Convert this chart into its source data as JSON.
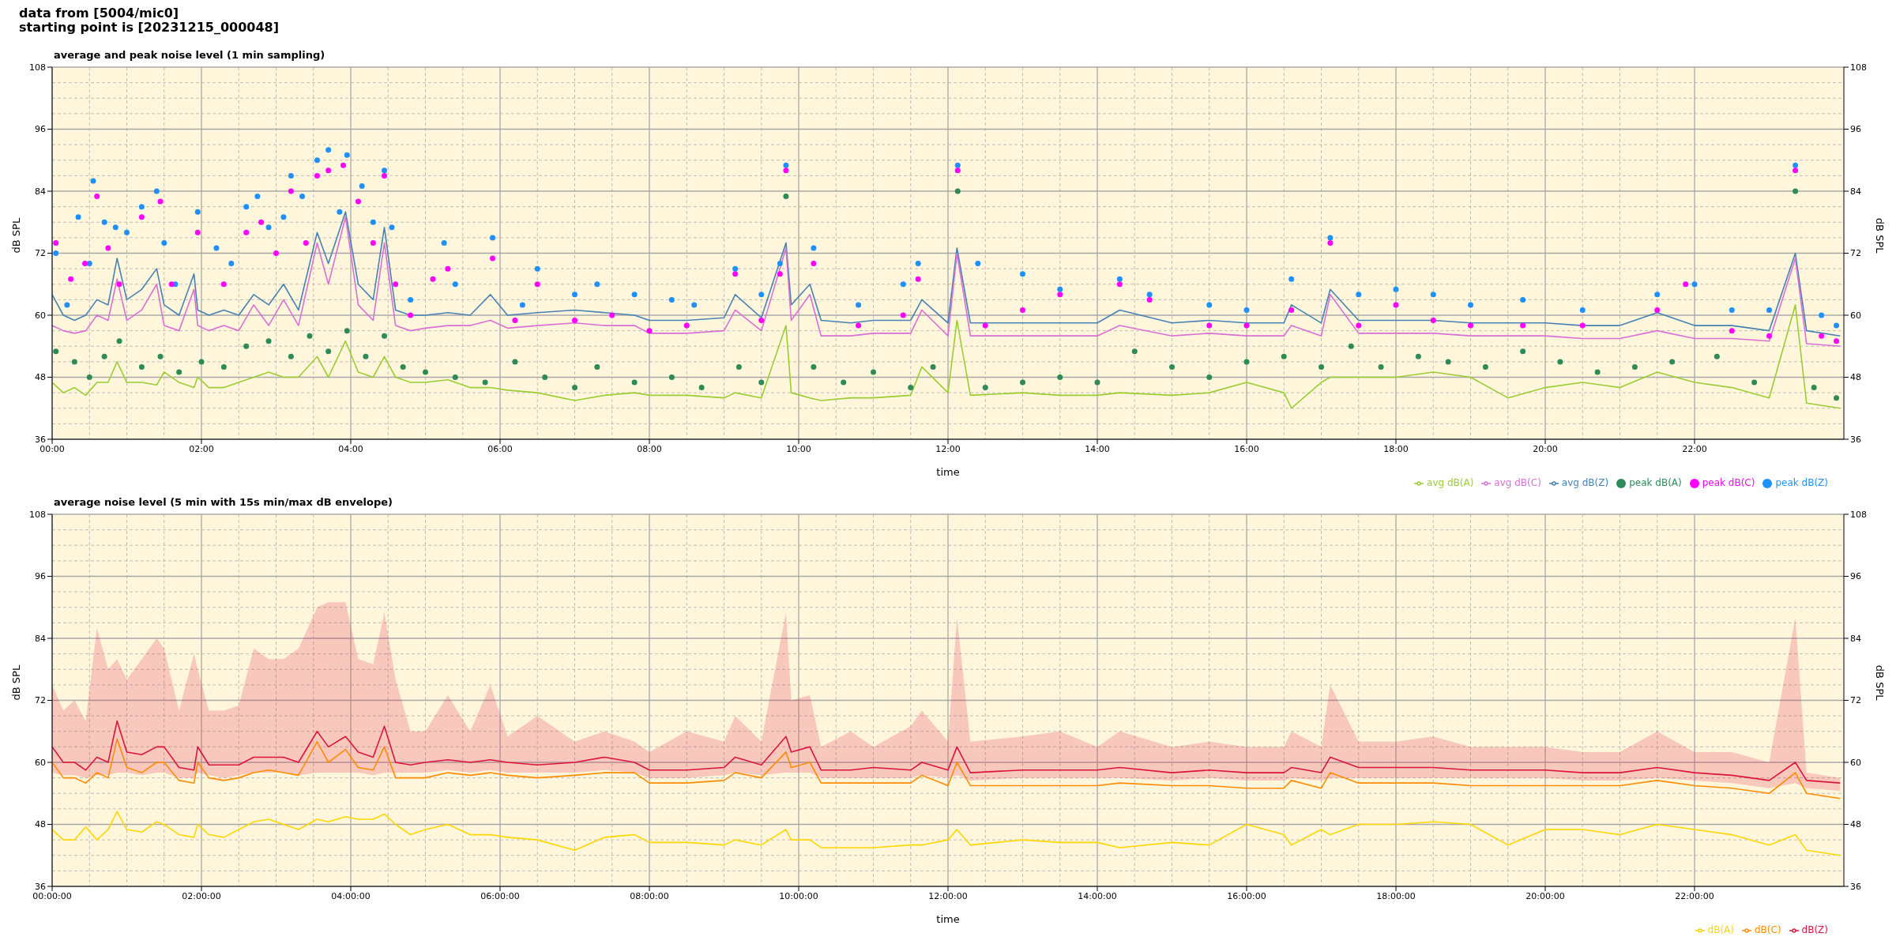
{
  "chart_data": [
    {
      "type": "line",
      "title": "average and peak noise level (1 min sampling)",
      "annotations": [
        "data from [5004/mic0]",
        "starting point is [20231215_000048]"
      ],
      "xlabel": "time",
      "ylabel": "dB SPL",
      "y2label": "dB SPL",
      "x": [
        0,
        0.15,
        0.3,
        0.45,
        0.6,
        0.75,
        0.87,
        1.0,
        1.2,
        1.4,
        1.5,
        1.7,
        1.9,
        1.95,
        2.1,
        2.3,
        2.5,
        2.7,
        2.9,
        3.1,
        3.3,
        3.55,
        3.7,
        3.93,
        4.1,
        4.3,
        4.45,
        4.6,
        4.8,
        5.0,
        5.3,
        5.6,
        5.87,
        6.1,
        6.5,
        7.0,
        7.4,
        7.8,
        8.0,
        8.5,
        9.0,
        9.15,
        9.5,
        9.83,
        9.9,
        10.15,
        10.3,
        10.7,
        11.0,
        11.5,
        11.65,
        12.0,
        12.12,
        12.3,
        13.0,
        13.5,
        14.0,
        14.3,
        15.0,
        15.5,
        16.0,
        16.5,
        16.6,
        17.0,
        17.12,
        17.5,
        18.0,
        18.5,
        19.0,
        19.5,
        20.0,
        20.5,
        21.0,
        21.5,
        22.0,
        22.5,
        23.0,
        23.35,
        23.5,
        23.95
      ],
      "xlim": [
        0,
        24
      ],
      "xticks": [
        {
          "value": 0,
          "label": "00:00"
        },
        {
          "value": 2,
          "label": "02:00"
        },
        {
          "value": 4,
          "label": "04:00"
        },
        {
          "value": 6,
          "label": "06:00"
        },
        {
          "value": 8,
          "label": "08:00"
        },
        {
          "value": 10,
          "label": "10:00"
        },
        {
          "value": 12,
          "label": "12:00"
        },
        {
          "value": 14,
          "label": "14:00"
        },
        {
          "value": 16,
          "label": "16:00"
        },
        {
          "value": 18,
          "label": "18:00"
        },
        {
          "value": 20,
          "label": "20:00"
        },
        {
          "value": 22,
          "label": "22:00"
        }
      ],
      "ylim": [
        36,
        108
      ],
      "yticks": [
        36,
        48,
        60,
        72,
        84,
        96,
        108
      ],
      "y2lim": [
        36,
        108
      ],
      "y2ticks": [
        36,
        48,
        60,
        72,
        84,
        96,
        108
      ],
      "grid": true,
      "legend": "bottom right",
      "series": [
        {
          "name": "peak dB(Z)",
          "type": "scatter",
          "marker": "circle",
          "color": "#1e90ff",
          "x": [
            0.05,
            0.2,
            0.35,
            0.5,
            0.55,
            0.7,
            0.85,
            1.0,
            1.2,
            1.4,
            1.5,
            1.65,
            1.95,
            2.2,
            2.4,
            2.6,
            2.75,
            2.9,
            3.1,
            3.2,
            3.35,
            3.55,
            3.7,
            3.85,
            3.95,
            4.15,
            4.3,
            4.45,
            4.55,
            4.8,
            5.25,
            5.4,
            5.9,
            6.3,
            6.5,
            7.0,
            7.3,
            7.8,
            8.3,
            8.6,
            9.15,
            9.5,
            9.75,
            9.83,
            10.2,
            10.8,
            11.4,
            11.6,
            12.13,
            12.4,
            13.0,
            13.5,
            14.3,
            14.7,
            15.5,
            16.0,
            16.6,
            17.12,
            17.5,
            18.0,
            18.5,
            19.0,
            19.7,
            20.5,
            21.5,
            22.0,
            22.5,
            23.0,
            23.35,
            23.7,
            23.9
          ],
          "values": [
            72,
            62,
            79,
            70,
            86,
            78,
            77,
            76,
            81,
            84,
            74,
            66,
            80,
            73,
            70,
            81,
            83,
            77,
            79,
            87,
            83,
            90,
            92,
            80,
            91,
            85,
            78,
            88,
            77,
            63,
            74,
            66,
            75,
            62,
            69,
            64,
            66,
            64,
            63,
            62,
            69,
            64,
            70,
            89,
            73,
            62,
            66,
            70,
            89,
            70,
            68,
            65,
            67,
            64,
            62,
            61,
            67,
            75,
            64,
            65,
            64,
            62,
            63,
            61,
            64,
            66,
            61,
            61,
            89,
            60,
            58
          ]
        },
        {
          "name": "peak dB(C)",
          "type": "scatter",
          "marker": "circle",
          "color": "#ff00ff",
          "x": [
            0.05,
            0.25,
            0.44,
            0.6,
            0.75,
            0.9,
            1.2,
            1.45,
            1.6,
            1.95,
            2.3,
            2.6,
            2.8,
            3.0,
            3.2,
            3.4,
            3.55,
            3.7,
            3.9,
            4.1,
            4.3,
            4.45,
            4.6,
            4.8,
            5.1,
            5.3,
            5.9,
            6.2,
            6.5,
            7.0,
            7.5,
            8.0,
            8.5,
            9.15,
            9.5,
            9.75,
            9.83,
            10.2,
            10.8,
            11.4,
            11.6,
            12.13,
            12.5,
            13.0,
            13.5,
            14.3,
            14.7,
            15.5,
            16.0,
            16.6,
            17.12,
            17.5,
            18.0,
            18.5,
            19.0,
            19.7,
            20.5,
            21.5,
            21.88,
            22.5,
            23.0,
            23.35,
            23.7,
            23.9
          ],
          "values": [
            74,
            67,
            70,
            83,
            73,
            66,
            79,
            82,
            66,
            76,
            66,
            76,
            78,
            72,
            84,
            74,
            87,
            88,
            89,
            82,
            74,
            87,
            66,
            60,
            67,
            69,
            71,
            59,
            66,
            59,
            60,
            57,
            58,
            68,
            59,
            68,
            88,
            70,
            58,
            60,
            67,
            88,
            58,
            61,
            64,
            66,
            63,
            58,
            58,
            61,
            74,
            58,
            62,
            59,
            58,
            58,
            58,
            61,
            66,
            57,
            56,
            88,
            56,
            55
          ]
        },
        {
          "name": "peak dB(A)",
          "type": "scatter",
          "marker": "circle",
          "color": "#2e8b57",
          "x": [
            0.05,
            0.3,
            0.5,
            0.7,
            0.9,
            1.2,
            1.45,
            1.7,
            2.0,
            2.3,
            2.6,
            2.9,
            3.2,
            3.45,
            3.7,
            3.95,
            4.2,
            4.45,
            4.7,
            5.0,
            5.4,
            5.8,
            6.2,
            6.6,
            7.0,
            7.3,
            7.8,
            8.3,
            8.7,
            9.2,
            9.5,
            9.83,
            10.2,
            10.6,
            11.0,
            11.5,
            11.8,
            12.13,
            12.5,
            13.0,
            13.5,
            14.0,
            14.5,
            15.0,
            15.5,
            16.0,
            16.5,
            17.0,
            17.4,
            17.8,
            18.3,
            18.7,
            19.2,
            19.7,
            20.2,
            20.7,
            21.2,
            21.7,
            22.3,
            22.8,
            23.35,
            23.6,
            23.9
          ],
          "values": [
            53,
            51,
            48,
            52,
            55,
            50,
            52,
            49,
            51,
            50,
            54,
            55,
            52,
            56,
            53,
            57,
            52,
            56,
            50,
            49,
            48,
            47,
            51,
            48,
            46,
            50,
            47,
            48,
            46,
            50,
            47,
            83,
            50,
            47,
            49,
            46,
            50,
            84,
            46,
            47,
            48,
            47,
            53,
            50,
            48,
            51,
            52,
            50,
            54,
            50,
            52,
            51,
            50,
            53,
            51,
            49,
            50,
            51,
            52,
            47,
            84,
            46,
            44
          ]
        },
        {
          "name": "avg dB(Z)",
          "color": "#4682b4",
          "values": [
            64,
            60,
            59,
            60,
            63,
            62,
            71,
            63,
            65,
            69,
            62,
            60,
            68,
            61,
            60,
            61,
            60,
            64,
            62,
            66,
            61,
            76,
            70,
            80,
            66,
            63,
            77,
            61,
            60,
            60,
            60.5,
            60,
            64,
            60,
            60.5,
            61,
            60.5,
            60,
            59,
            59,
            59.5,
            64,
            59.5,
            74,
            62,
            66,
            59,
            58.5,
            59,
            59,
            63,
            58.5,
            73,
            58.5,
            58.5,
            58.5,
            58.5,
            61,
            58.5,
            59,
            58.5,
            58.5,
            62,
            58.5,
            65,
            59,
            59,
            59,
            58.5,
            58.5,
            58.5,
            58,
            58,
            60.5,
            58,
            58,
            57,
            72,
            57,
            56
          ]
        },
        {
          "name": "avg dB(C)",
          "color": "#da70d6",
          "values": [
            58,
            57,
            56.5,
            57,
            60,
            59,
            67,
            59,
            61,
            66,
            58,
            57,
            65,
            58,
            57,
            58,
            57,
            62,
            58,
            63,
            58,
            74,
            66,
            79,
            62,
            59,
            74,
            58,
            57,
            57.5,
            58,
            58,
            59,
            57.5,
            58,
            58.5,
            58,
            58,
            56.5,
            56.5,
            57,
            61,
            57,
            73,
            59,
            64,
            56,
            56,
            56.5,
            56.5,
            61,
            56,
            72,
            56,
            56,
            56,
            56,
            58,
            56,
            56.5,
            56,
            56,
            58,
            56,
            64,
            56.5,
            56.5,
            56.5,
            56,
            56,
            56,
            55.5,
            55.5,
            57,
            55.5,
            55.5,
            55,
            71,
            54.5,
            54
          ]
        },
        {
          "name": "avg dB(A)",
          "color": "#9acd32",
          "values": [
            47,
            45,
            46,
            44.5,
            47,
            47,
            51,
            47,
            47,
            46.5,
            49,
            47,
            46,
            48,
            46,
            46,
            47,
            48,
            49,
            48,
            48,
            52,
            48,
            55,
            49,
            48,
            52,
            48,
            47,
            47,
            47.5,
            46,
            46,
            45.5,
            45,
            43.5,
            44.5,
            45,
            44.5,
            44.5,
            44,
            45,
            44,
            58,
            45,
            44,
            43.5,
            44,
            44,
            44.5,
            50,
            45,
            59,
            44.5,
            45,
            44.5,
            44.5,
            45,
            44.5,
            45,
            47,
            45,
            42,
            47,
            48,
            48,
            48,
            49,
            48,
            44,
            46,
            47,
            46,
            49,
            47,
            46,
            44,
            62,
            43,
            42
          ]
        }
      ]
    },
    {
      "type": "line",
      "title": "average noise level (5 min with 15s min/max dB envelope)",
      "xlabel": "time",
      "ylabel": "dB SPL",
      "y2label": "dB SPL",
      "x": [
        0,
        0.15,
        0.3,
        0.45,
        0.6,
        0.75,
        0.87,
        1.0,
        1.2,
        1.4,
        1.5,
        1.7,
        1.9,
        1.95,
        2.1,
        2.3,
        2.5,
        2.7,
        2.9,
        3.1,
        3.3,
        3.55,
        3.7,
        3.93,
        4.1,
        4.3,
        4.45,
        4.6,
        4.8,
        5.0,
        5.3,
        5.6,
        5.87,
        6.1,
        6.5,
        7.0,
        7.4,
        7.8,
        8.0,
        8.5,
        9.0,
        9.15,
        9.5,
        9.83,
        9.9,
        10.15,
        10.3,
        10.7,
        11.0,
        11.5,
        11.65,
        12.0,
        12.12,
        12.3,
        13.0,
        13.5,
        14.0,
        14.3,
        15.0,
        15.5,
        16.0,
        16.5,
        16.6,
        17.0,
        17.12,
        17.5,
        18.0,
        18.5,
        19.0,
        19.5,
        20.0,
        20.5,
        21.0,
        21.5,
        22.0,
        22.5,
        23.0,
        23.35,
        23.5,
        23.95
      ],
      "xlim": [
        0,
        24
      ],
      "xticks": [
        {
          "value": 0,
          "label": "00:00:00"
        },
        {
          "value": 2,
          "label": "02:00:00"
        },
        {
          "value": 4,
          "label": "04:00:00"
        },
        {
          "value": 6,
          "label": "06:00:00"
        },
        {
          "value": 8,
          "label": "08:00:00"
        },
        {
          "value": 10,
          "label": "10:00:00"
        },
        {
          "value": 12,
          "label": "12:00:00"
        },
        {
          "value": 14,
          "label": "14:00:00"
        },
        {
          "value": 16,
          "label": "16:00:00"
        },
        {
          "value": 18,
          "label": "18:00:00"
        },
        {
          "value": 20,
          "label": "20:00:00"
        },
        {
          "value": 22,
          "label": "22:00:00"
        }
      ],
      "ylim": [
        36,
        108
      ],
      "yticks": [
        36,
        48,
        60,
        72,
        84,
        96,
        108
      ],
      "y2lim": [
        36,
        108
      ],
      "y2ticks": [
        36,
        48,
        60,
        72,
        84,
        96,
        108
      ],
      "grid": true,
      "legend": "bottom right",
      "series": [
        {
          "name": "dB(Z)",
          "color": "#dc143c",
          "values": [
            63,
            60,
            60,
            58.5,
            61,
            60,
            68,
            62,
            61.5,
            63,
            63,
            59,
            58.5,
            63,
            59.5,
            59.5,
            59.5,
            61,
            61,
            61,
            60,
            66,
            63,
            65,
            62,
            61,
            67,
            60,
            59.5,
            60,
            60.5,
            60,
            60.5,
            60,
            59.5,
            60,
            61,
            60,
            58.5,
            58.5,
            59,
            61,
            59.5,
            65,
            62,
            63,
            58.5,
            58.5,
            59,
            58.5,
            60,
            58.5,
            63,
            58,
            58.5,
            58.5,
            58.5,
            59,
            58,
            58.5,
            58,
            58,
            59,
            58,
            61,
            59,
            59,
            59,
            58.5,
            58.5,
            58.5,
            58,
            58,
            59,
            58,
            57.5,
            56.5,
            60,
            56.5,
            56
          ],
          "lower": [
            58,
            57.5,
            57.5,
            57,
            57.5,
            57.5,
            58,
            58,
            57.5,
            58,
            58,
            57,
            57,
            58,
            57.5,
            57,
            57.5,
            58,
            58,
            58,
            57.5,
            58,
            58,
            58,
            58,
            57.5,
            58,
            58,
            58,
            58,
            58.5,
            58,
            58.5,
            58,
            58,
            58,
            58.5,
            58,
            57,
            57,
            57.5,
            58,
            57.5,
            58,
            58,
            58,
            57,
            57,
            57,
            57,
            57.5,
            57,
            57.5,
            56.5,
            57,
            57,
            57,
            57,
            56.5,
            57,
            56.5,
            56.5,
            57,
            56.5,
            57,
            57,
            57,
            57,
            57,
            57,
            57,
            56.5,
            56.5,
            57,
            56.5,
            56,
            55,
            56,
            55,
            54.5
          ],
          "upper": [
            75,
            70,
            72,
            68,
            86,
            78,
            80,
            76,
            80,
            84,
            82,
            70,
            81,
            78,
            70,
            70,
            71,
            82,
            80,
            80,
            82,
            90,
            91,
            91,
            80,
            79,
            89,
            76,
            66,
            66,
            73,
            66,
            75,
            65,
            69,
            64,
            66,
            64,
            62,
            66,
            64,
            69,
            64,
            89,
            72,
            73,
            63,
            66,
            63,
            67,
            70,
            64,
            88,
            64,
            65,
            66,
            63,
            66,
            63,
            64,
            63,
            63,
            66,
            63,
            75,
            64,
            64,
            65,
            63,
            63,
            63,
            62,
            62,
            66,
            62,
            62,
            60,
            88,
            58,
            57
          ]
        },
        {
          "name": "dB(C)",
          "color": "#ff8c00",
          "values": [
            60,
            57,
            57,
            56,
            58,
            57,
            64.5,
            59,
            58,
            60,
            60,
            56.5,
            56,
            60,
            57,
            56.5,
            57,
            58,
            58.5,
            58,
            57.5,
            64,
            60,
            62.5,
            59,
            58.5,
            63,
            57,
            57,
            57,
            58,
            57.5,
            58,
            57.5,
            57,
            57.5,
            58,
            58,
            56,
            56,
            56.5,
            58,
            57,
            62,
            59,
            60,
            56,
            56,
            56,
            56,
            57.5,
            55.5,
            60,
            55.5,
            55.5,
            55.5,
            55.5,
            56,
            55.5,
            55.5,
            55,
            55,
            56.5,
            55,
            58,
            56,
            56,
            56,
            55.5,
            55.5,
            55.5,
            55.5,
            55.5,
            56.5,
            55.5,
            55,
            54,
            58,
            54,
            53
          ]
        },
        {
          "name": "dB(A)",
          "color": "#ffd700",
          "values": [
            47,
            45,
            45,
            47.5,
            45,
            47,
            50.5,
            47,
            46.5,
            48.5,
            48,
            46,
            45.5,
            48,
            46,
            45.5,
            47,
            48.5,
            49,
            48,
            47,
            49,
            48.5,
            49.5,
            49,
            49,
            50,
            48,
            46,
            47,
            48,
            46,
            46,
            45.5,
            45,
            43,
            45.5,
            46,
            44.5,
            44.5,
            44,
            45,
            44,
            47,
            45,
            45,
            43.5,
            43.5,
            43.5,
            44,
            44,
            45,
            47,
            44,
            45,
            44.5,
            44.5,
            43.5,
            44.5,
            44,
            48,
            46,
            44,
            47,
            46,
            48,
            48,
            48.5,
            48,
            44,
            47,
            47,
            46,
            48,
            47,
            46,
            44,
            46,
            43,
            42
          ]
        }
      ]
    }
  ]
}
